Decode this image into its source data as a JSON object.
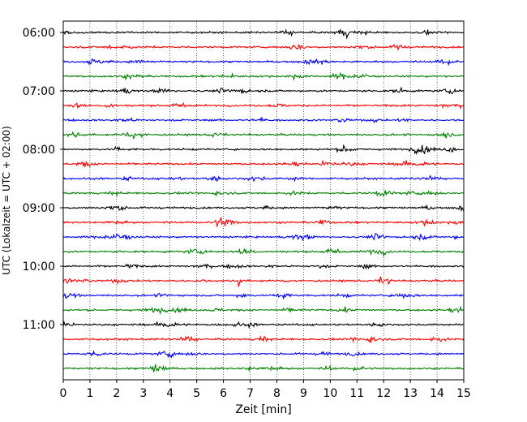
{
  "chart_data": {
    "type": "line",
    "subtype": "helicorder",
    "title": "",
    "xlabel": "Zeit  [min]",
    "ylabel": "UTC (Lokalzeit = UTC + 02:00)",
    "xlim": [
      0,
      15
    ],
    "x_ticks": [
      "0",
      "1",
      "2",
      "3",
      "4",
      "5",
      "6",
      "7",
      "8",
      "9",
      "10",
      "11",
      "12",
      "13",
      "14",
      "15"
    ],
    "y_ticks": [
      "06:00",
      "07:00",
      "08:00",
      "09:00",
      "10:00",
      "11:00"
    ],
    "traces_per_hour": 4,
    "trace_minutes": 15,
    "start_time": "06:00",
    "trace_count": 24,
    "vertical_grid": "dotted",
    "trace_colors": [
      "#000000",
      "#ff0000",
      "#0000ff",
      "#008000"
    ],
    "noise_amplitude": 0.06,
    "events": [
      {
        "trace_index": 17,
        "minute": 6.6,
        "amplitude": 0.55
      },
      {
        "trace_index": 17,
        "minute": 8.35,
        "amplitude": 0.35
      }
    ]
  }
}
